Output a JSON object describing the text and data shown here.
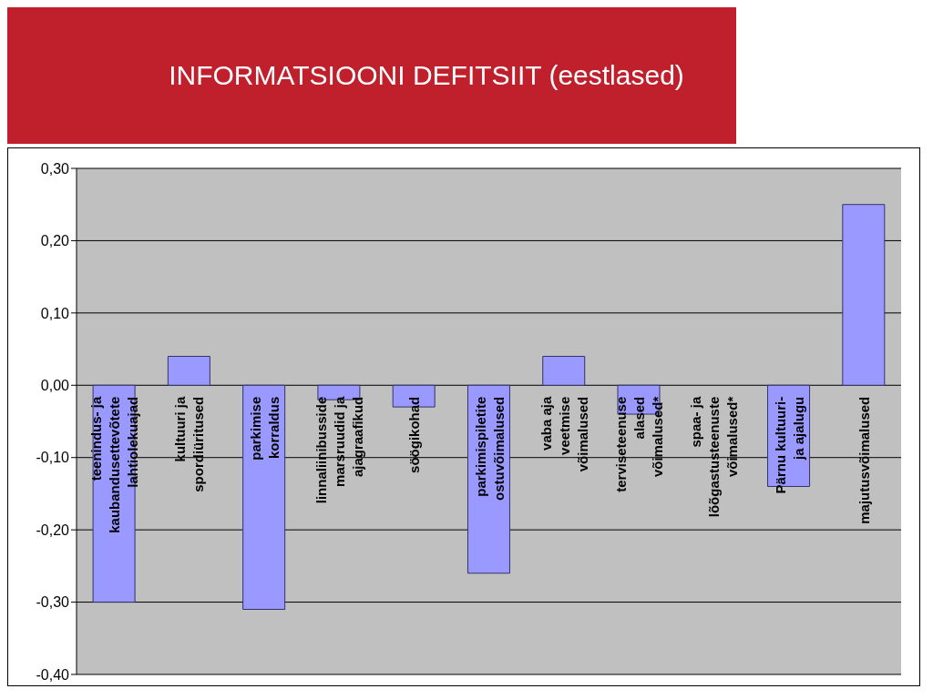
{
  "chart_data": {
    "type": "bar",
    "title": "INFORMATSIOONI DEFITSIIT (eestlased)",
    "categories": [
      "teenindus- ja kaubandusettevõtete lahtiolekuajad",
      "kultuuri ja spordiüritused",
      "parkimise korraldus",
      "linnaliinibusside marsruudid ja ajagraafikud",
      "söögikohad",
      "parkimispiletite ostuvõimalused",
      "vaba aja veetmise võimalused",
      "terviseteenuse alased võimalused*",
      "spaa- ja lõõgastusteenuste võimalused*",
      "Pärnu kultuuri- ja ajalugu",
      "majutusvõimalused"
    ],
    "values": [
      -0.3,
      0.04,
      -0.31,
      -0.02,
      -0.03,
      -0.26,
      0.04,
      -0.04,
      0,
      -0.14,
      0.25
    ],
    "color": "#9999ff",
    "ylim": [
      -0.4,
      0.3
    ],
    "yticks": [
      {
        "value": -0.4,
        "label": "-0,40"
      },
      {
        "value": -0.3,
        "label": "-0,30"
      },
      {
        "value": -0.2,
        "label": "-0,20"
      },
      {
        "value": -0.1,
        "label": "-0,10"
      },
      {
        "value": 0,
        "label": "0,00"
      },
      {
        "value": 0.1,
        "label": "0,10"
      },
      {
        "value": 0.2,
        "label": "0,20"
      },
      {
        "value": 0.3,
        "label": "0,30"
      }
    ],
    "grid": "y"
  }
}
